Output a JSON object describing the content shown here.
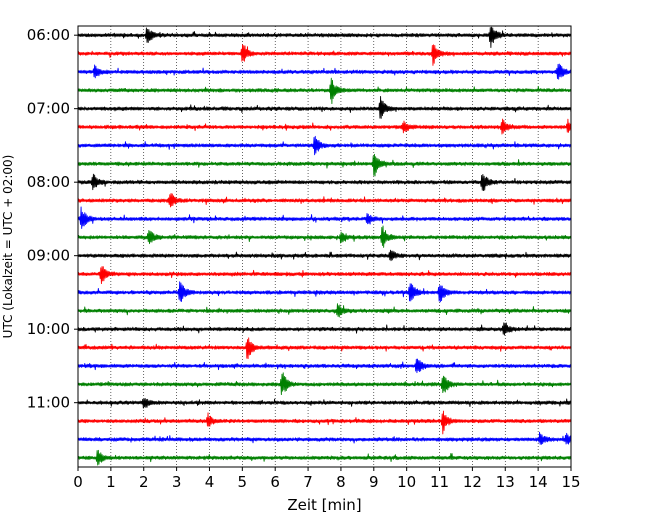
{
  "chart_data": {
    "type": "line",
    "title": "",
    "xlabel": "Zeit  [min]",
    "ylabel": "UTC (Lokalzeit = UTC + 02:00)",
    "xlim": [
      0,
      15
    ],
    "x_ticks": [
      "0",
      "1",
      "2",
      "3",
      "4",
      "5",
      "6",
      "7",
      "8",
      "9",
      "10",
      "11",
      "12",
      "13",
      "14",
      "15"
    ],
    "y_range": [
      "05:52:30",
      "11:52:30"
    ],
    "y_ticks": [
      "06:00",
      "07:00",
      "08:00",
      "09:00",
      "10:00",
      "11:00"
    ],
    "row_interval_minutes": 15,
    "grid": {
      "vertical": true,
      "style": "dotted"
    },
    "legend": "none",
    "series_colors": [
      "#000000",
      "#ff0000",
      "#0000ff",
      "#008000"
    ],
    "series": [
      {
        "start": "06:00",
        "color": "#000000",
        "events_min": [
          2.1,
          12.55
        ]
      },
      {
        "start": "06:15",
        "color": "#ff0000",
        "events_min": [
          5.0,
          10.8
        ]
      },
      {
        "start": "06:30",
        "color": "#0000ff",
        "events_min": [
          0.5,
          14.6
        ]
      },
      {
        "start": "06:45",
        "color": "#008000",
        "events_min": [
          7.7
        ]
      },
      {
        "start": "07:00",
        "color": "#000000",
        "events_min": [
          9.2
        ]
      },
      {
        "start": "07:15",
        "color": "#ff0000",
        "events_min": [
          9.9,
          12.9,
          14.9
        ]
      },
      {
        "start": "07:30",
        "color": "#0000ff",
        "events_min": [
          7.2
        ]
      },
      {
        "start": "07:45",
        "color": "#008000",
        "events_min": [
          9.0
        ]
      },
      {
        "start": "08:00",
        "color": "#000000",
        "events_min": [
          0.45,
          12.3
        ]
      },
      {
        "start": "08:15",
        "color": "#ff0000",
        "events_min": [
          2.8
        ]
      },
      {
        "start": "08:30",
        "color": "#0000ff",
        "events_min": [
          0.1,
          8.8
        ]
      },
      {
        "start": "08:45",
        "color": "#008000",
        "events_min": [
          2.15,
          8.0,
          9.25
        ]
      },
      {
        "start": "09:00",
        "color": "#000000",
        "events_min": [
          9.5
        ]
      },
      {
        "start": "09:15",
        "color": "#ff0000",
        "events_min": [
          0.7
        ]
      },
      {
        "start": "09:30",
        "color": "#0000ff",
        "events_min": [
          3.1,
          10.1,
          11.0
        ]
      },
      {
        "start": "09:45",
        "color": "#008000",
        "events_min": [
          7.9
        ]
      },
      {
        "start": "10:00",
        "color": "#000000",
        "events_min": [
          12.95
        ]
      },
      {
        "start": "10:15",
        "color": "#ff0000",
        "events_min": [
          5.15
        ]
      },
      {
        "start": "10:30",
        "color": "#0000ff",
        "events_min": [
          10.3
        ]
      },
      {
        "start": "10:45",
        "color": "#008000",
        "events_min": [
          6.2,
          11.1
        ]
      },
      {
        "start": "11:00",
        "color": "#000000",
        "events_min": [
          2.0
        ]
      },
      {
        "start": "11:15",
        "color": "#ff0000",
        "events_min": [
          3.95,
          11.1
        ]
      },
      {
        "start": "11:30",
        "color": "#0000ff",
        "events_min": [
          14.05,
          14.85
        ]
      },
      {
        "start": "11:45",
        "color": "#008000",
        "events_min": [
          0.6
        ]
      }
    ]
  }
}
